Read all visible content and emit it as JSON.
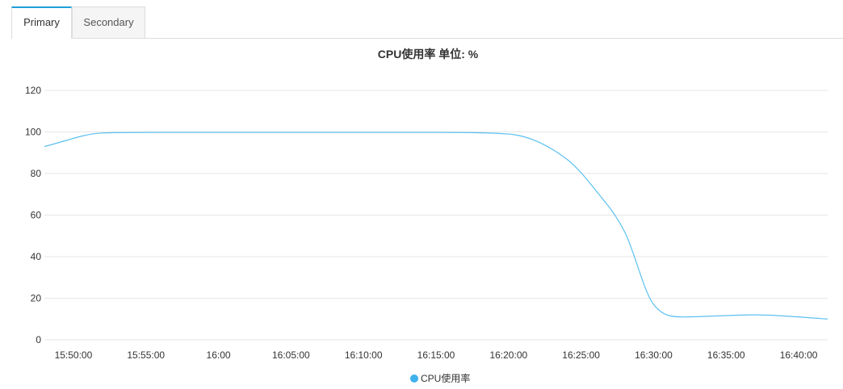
{
  "tabs": [
    {
      "label": "Primary",
      "active": true
    },
    {
      "label": "Secondary",
      "active": false
    }
  ],
  "colors": {
    "accent": "#1fa0d8",
    "series": "#5bc0f0",
    "legend_dot": "#3fb1ec",
    "grid": "#e6e6e6"
  },
  "chart_data": {
    "type": "line",
    "title": "CPU使用率 单位: %",
    "xlabel": "",
    "ylabel": "",
    "ylim": [
      0,
      120
    ],
    "yticks": [
      0,
      20,
      40,
      60,
      80,
      100,
      120
    ],
    "grid": true,
    "legend_position": "bottom-center",
    "x_tick_labels": [
      "15:50:00",
      "15:55:00",
      "16:00",
      "16:05:00",
      "16:10:00",
      "16:15:00",
      "16:20:00",
      "16:25:00",
      "16:30:00",
      "16:35:00",
      "16:40:00"
    ],
    "x_tick_times": [
      "15:50:00",
      "15:55:00",
      "16:00:00",
      "16:05:00",
      "16:10:00",
      "16:15:00",
      "16:20:00",
      "16:25:00",
      "16:30:00",
      "16:35:00",
      "16:40:00"
    ],
    "x_range": [
      "15:48:00",
      "16:42:00"
    ],
    "series": [
      {
        "name": "CPU使用率",
        "points": [
          {
            "x": "15:48:00",
            "y": 93
          },
          {
            "x": "15:52:00",
            "y": 99.5
          },
          {
            "x": "15:56:00",
            "y": 99.8
          },
          {
            "x": "16:00:00",
            "y": 99.8
          },
          {
            "x": "16:05:00",
            "y": 99.8
          },
          {
            "x": "16:10:00",
            "y": 99.8
          },
          {
            "x": "16:15:00",
            "y": 99.8
          },
          {
            "x": "16:20:00",
            "y": 99
          },
          {
            "x": "16:24:00",
            "y": 87
          },
          {
            "x": "16:26:00",
            "y": 72
          },
          {
            "x": "16:28:00",
            "y": 52
          },
          {
            "x": "16:30:00",
            "y": 17
          },
          {
            "x": "16:32:00",
            "y": 11
          },
          {
            "x": "16:37:00",
            "y": 12
          },
          {
            "x": "16:42:00",
            "y": 10
          }
        ]
      }
    ]
  }
}
